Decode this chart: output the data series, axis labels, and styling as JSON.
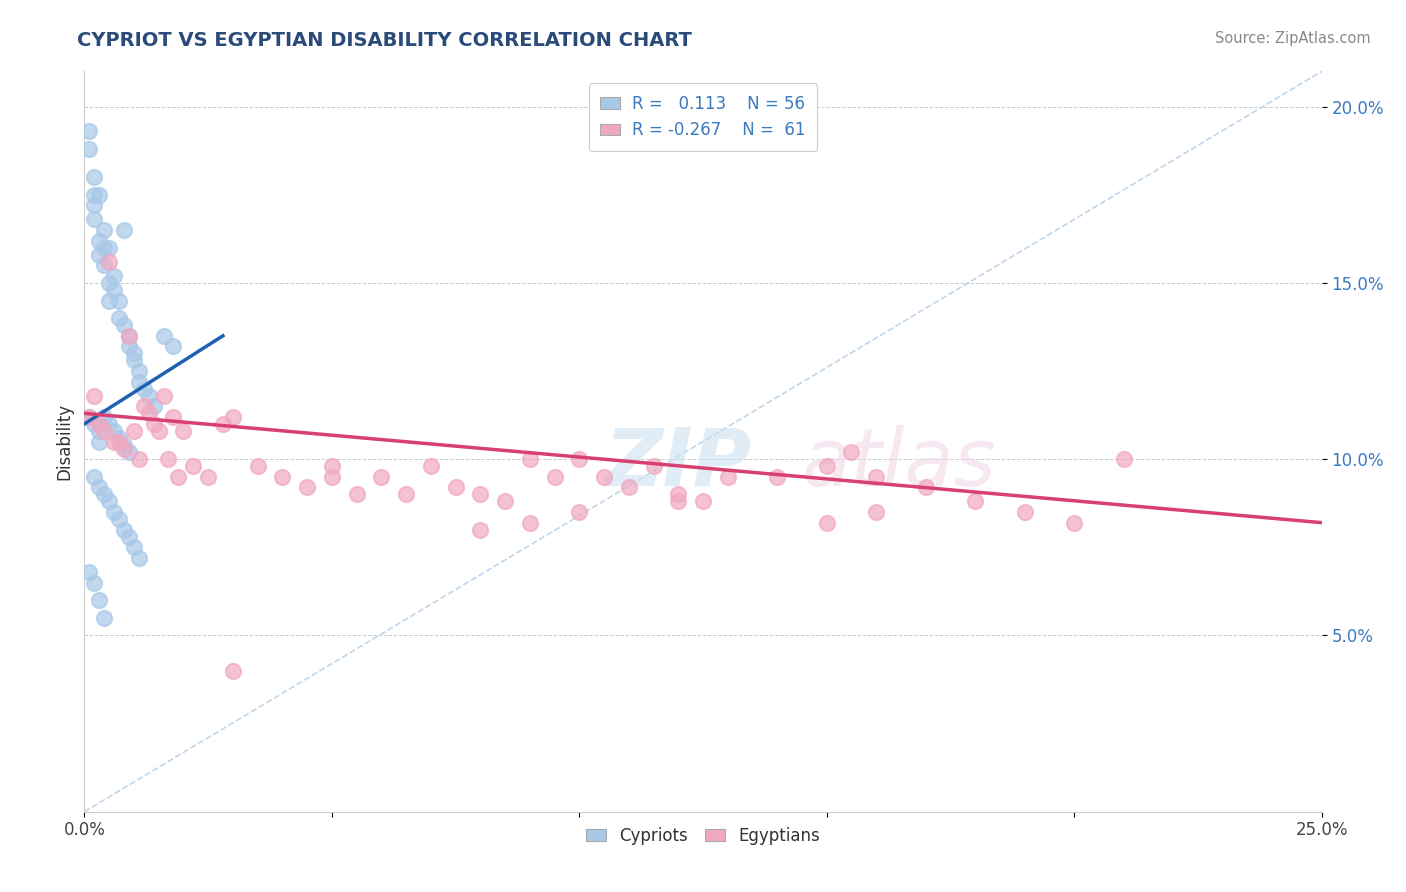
{
  "title": "CYPRIOT VS EGYPTIAN DISABILITY CORRELATION CHART",
  "source": "Source: ZipAtlas.com",
  "ylabel": "Disability",
  "xlim": [
    0.0,
    0.25
  ],
  "ylim": [
    0.0,
    0.21
  ],
  "cypriot_R": 0.113,
  "cypriot_N": 56,
  "egyptian_R": -0.267,
  "egyptian_N": 61,
  "cypriot_color": "#a8c8e8",
  "egyptian_color": "#f0a8c0",
  "cypriot_line_color": "#2060b0",
  "egyptian_line_color": "#d84070",
  "dashed_line_color": "#b0cce8",
  "legend_cypriot": "Cypriots",
  "legend_egyptian": "Egyptians",
  "cypriot_x": [
    0.001,
    0.001,
    0.002,
    0.002,
    0.002,
    0.002,
    0.003,
    0.003,
    0.003,
    0.004,
    0.004,
    0.004,
    0.005,
    0.005,
    0.005,
    0.006,
    0.006,
    0.007,
    0.007,
    0.008,
    0.008,
    0.009,
    0.009,
    0.01,
    0.01,
    0.011,
    0.011,
    0.012,
    0.013,
    0.014,
    0.001,
    0.002,
    0.003,
    0.003,
    0.004,
    0.005,
    0.006,
    0.007,
    0.008,
    0.009,
    0.002,
    0.003,
    0.004,
    0.005,
    0.006,
    0.007,
    0.008,
    0.009,
    0.01,
    0.011,
    0.001,
    0.002,
    0.003,
    0.004,
    0.016,
    0.018
  ],
  "cypriot_y": [
    0.193,
    0.188,
    0.18,
    0.175,
    0.172,
    0.168,
    0.162,
    0.158,
    0.175,
    0.165,
    0.16,
    0.155,
    0.15,
    0.145,
    0.16,
    0.152,
    0.148,
    0.145,
    0.14,
    0.165,
    0.138,
    0.135,
    0.132,
    0.13,
    0.128,
    0.125,
    0.122,
    0.12,
    0.118,
    0.115,
    0.112,
    0.11,
    0.108,
    0.105,
    0.112,
    0.11,
    0.108,
    0.106,
    0.104,
    0.102,
    0.095,
    0.092,
    0.09,
    0.088,
    0.085,
    0.083,
    0.08,
    0.078,
    0.075,
    0.072,
    0.068,
    0.065,
    0.06,
    0.055,
    0.135,
    0.132
  ],
  "egyptian_x": [
    0.001,
    0.002,
    0.003,
    0.004,
    0.005,
    0.006,
    0.007,
    0.008,
    0.009,
    0.01,
    0.011,
    0.012,
    0.013,
    0.014,
    0.015,
    0.016,
    0.017,
    0.018,
    0.019,
    0.02,
    0.022,
    0.025,
    0.028,
    0.03,
    0.035,
    0.04,
    0.045,
    0.05,
    0.055,
    0.06,
    0.065,
    0.07,
    0.075,
    0.08,
    0.085,
    0.09,
    0.095,
    0.1,
    0.105,
    0.11,
    0.115,
    0.12,
    0.125,
    0.13,
    0.14,
    0.15,
    0.155,
    0.16,
    0.17,
    0.18,
    0.19,
    0.2,
    0.21,
    0.05,
    0.1,
    0.15,
    0.08,
    0.12,
    0.16,
    0.09,
    0.03
  ],
  "egyptian_y": [
    0.112,
    0.118,
    0.11,
    0.108,
    0.156,
    0.105,
    0.105,
    0.103,
    0.135,
    0.108,
    0.1,
    0.115,
    0.113,
    0.11,
    0.108,
    0.118,
    0.1,
    0.112,
    0.095,
    0.108,
    0.098,
    0.095,
    0.11,
    0.112,
    0.098,
    0.095,
    0.092,
    0.098,
    0.09,
    0.095,
    0.09,
    0.098,
    0.092,
    0.09,
    0.088,
    0.1,
    0.095,
    0.1,
    0.095,
    0.092,
    0.098,
    0.09,
    0.088,
    0.095,
    0.095,
    0.098,
    0.102,
    0.095,
    0.092,
    0.088,
    0.085,
    0.082,
    0.1,
    0.095,
    0.085,
    0.082,
    0.08,
    0.088,
    0.085,
    0.082,
    0.04
  ],
  "cyp_line_x0": 0.0,
  "cyp_line_x1": 0.028,
  "cyp_line_y0": 0.11,
  "cyp_line_y1": 0.135,
  "egy_line_x0": 0.0,
  "egy_line_x1": 0.25,
  "egy_line_y0": 0.113,
  "egy_line_y1": 0.082
}
